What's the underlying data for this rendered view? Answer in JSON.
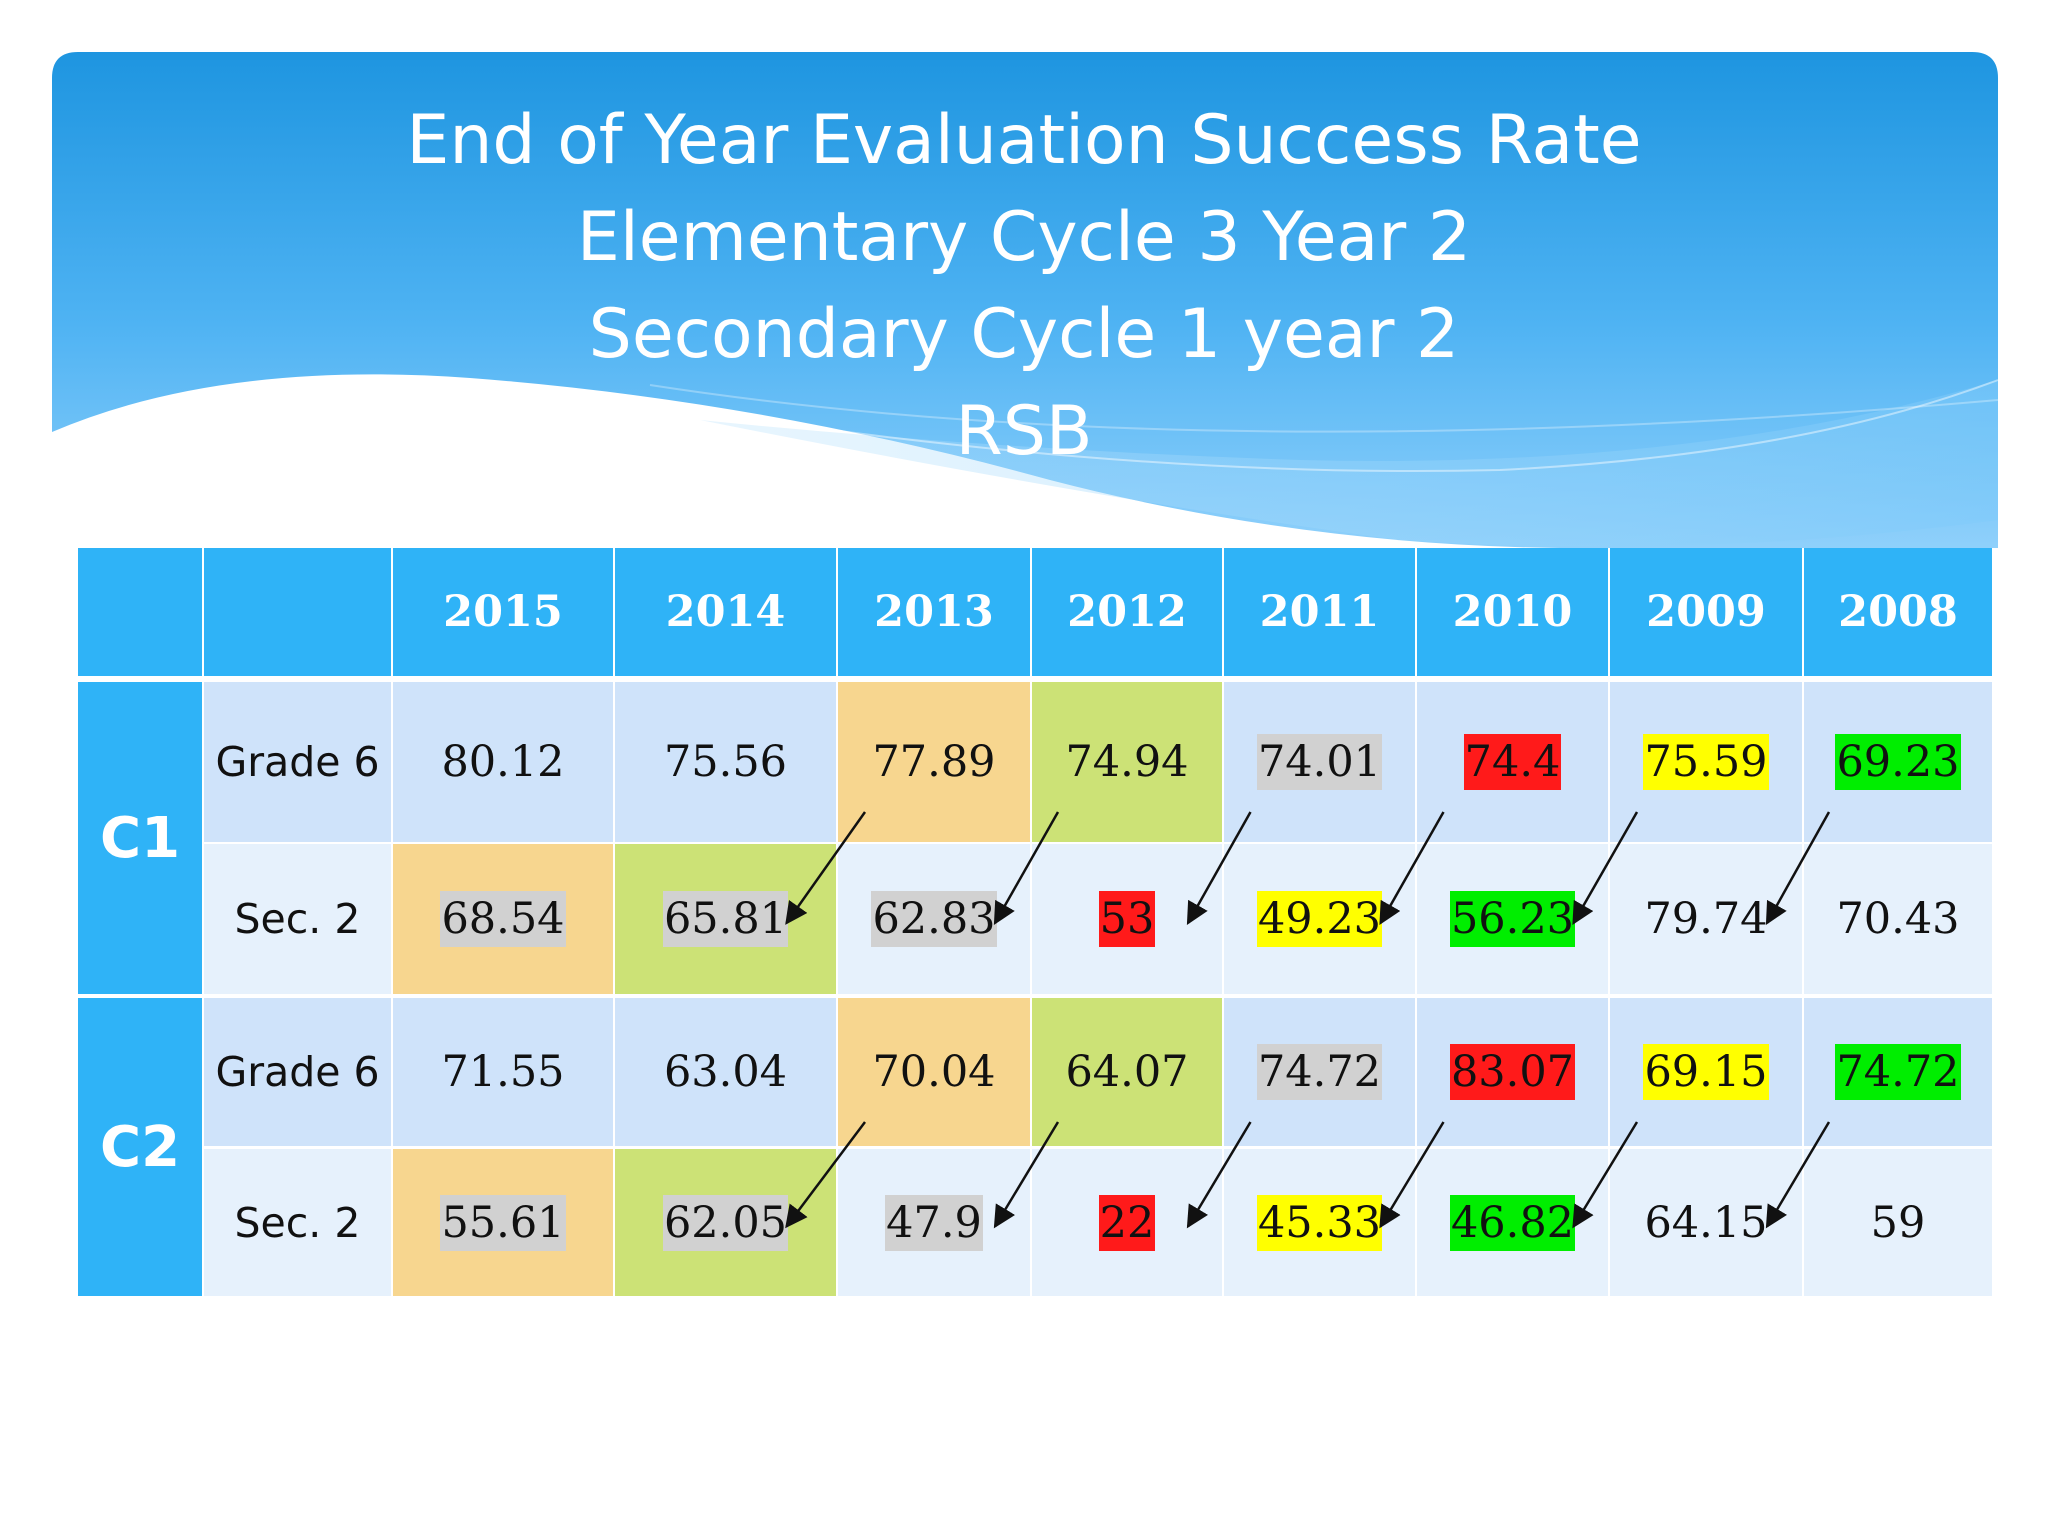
{
  "title_lines": [
    "End of Year Evaluation Success Rate",
    "Elementary Cycle 3 Year 2",
    "Secondary Cycle 1 year 2",
    "RSB"
  ],
  "colors": {
    "header_blue": "#2fb3f7",
    "row_dark": "#cfe3fa",
    "row_light": "#e6f1fc",
    "peach": "#f7d68f",
    "lime": "#cce276",
    "gray": "#d1d1d1",
    "red": "#ff1a1a",
    "yellow": "#ffff00",
    "green": "#00ee00"
  },
  "table": {
    "years": [
      "2015",
      "2014",
      "2013",
      "2012",
      "2011",
      "2010",
      "2009",
      "2008"
    ],
    "groups": [
      {
        "label": "C1",
        "rows": [
          {
            "label": "Grade 6",
            "values": [
              "80.12",
              "75.56",
              "77.89",
              "74.94",
              "74.01",
              "74.4",
              "75.59",
              "69.23"
            ],
            "cell_colors": [
              "",
              "",
              "peach",
              "lime",
              "",
              "",
              "",
              ""
            ],
            "highlights": [
              "",
              "",
              "",
              "",
              "gray",
              "red",
              "yellow",
              "green"
            ]
          },
          {
            "label": "Sec. 2",
            "values": [
              "68.54",
              "65.81",
              "62.83",
              "53",
              "49.23",
              "56.23",
              "79.74",
              "70.43"
            ],
            "cell_colors": [
              "peach",
              "lime",
              "",
              "",
              "",
              "",
              "",
              ""
            ],
            "highlights": [
              "gray",
              "gray",
              "gray",
              "red",
              "yellow",
              "green",
              "",
              ""
            ]
          }
        ]
      },
      {
        "label": "C2",
        "rows": [
          {
            "label": "Grade 6",
            "values": [
              "71.55",
              "63.04",
              "70.04",
              "64.07",
              "74.72",
              "83.07",
              "69.15",
              "74.72"
            ],
            "cell_colors": [
              "",
              "",
              "peach",
              "lime",
              "",
              "",
              "",
              ""
            ],
            "highlights": [
              "",
              "",
              "",
              "",
              "gray",
              "red",
              "yellow",
              "green"
            ]
          },
          {
            "label": "Sec. 2",
            "values": [
              "55.61",
              "62.05",
              "47.9",
              "22",
              "45.33",
              "46.82",
              "64.15",
              "59"
            ],
            "cell_colors": [
              "peach",
              "lime",
              "",
              "",
              "",
              "",
              "",
              ""
            ],
            "highlights": [
              "gray",
              "gray",
              "gray",
              "red",
              "yellow",
              "green",
              "",
              ""
            ]
          }
        ]
      }
    ]
  }
}
